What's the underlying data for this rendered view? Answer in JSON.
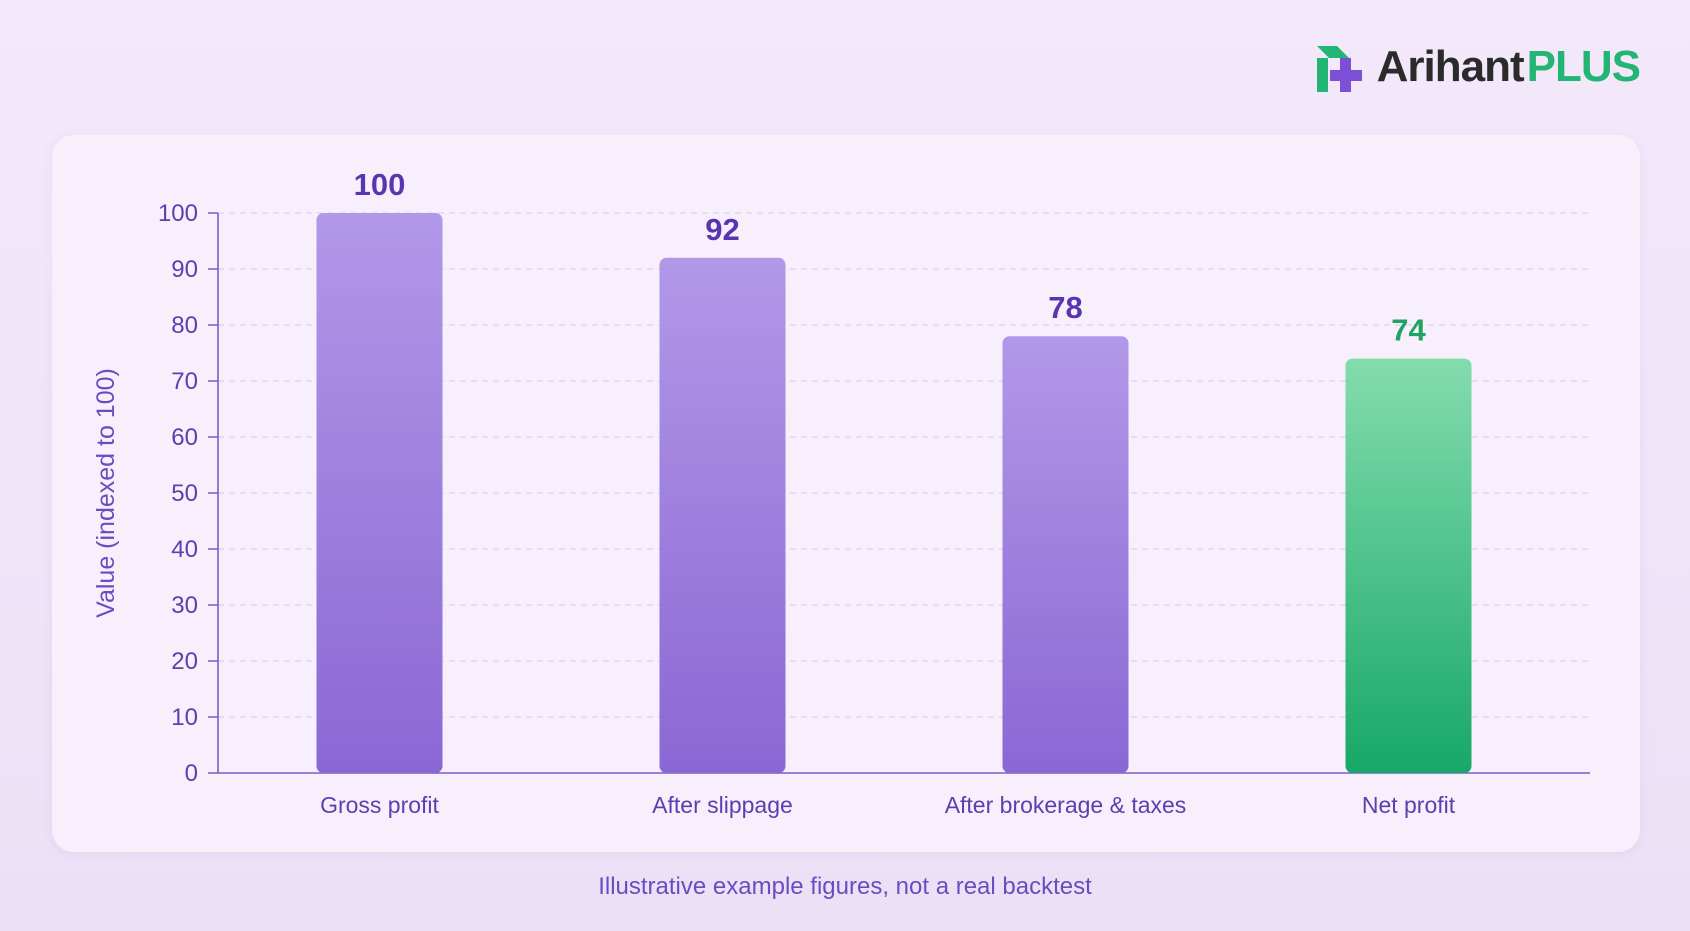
{
  "brand": {
    "name": "Arihant",
    "suffix": "PLUS",
    "icon": "arihant-logo-icon",
    "colors": {
      "name": "#2b2b2b",
      "suffix": "#22b573",
      "icon_green": "#22b573",
      "icon_purple": "#7b4fd6"
    }
  },
  "chart_data": {
    "type": "bar",
    "categories": [
      "Gross profit",
      "After slippage",
      "After brokerage & taxes",
      "Net profit"
    ],
    "values": [
      100,
      92,
      78,
      74
    ],
    "data_labels": [
      "100",
      "92",
      "78",
      "74"
    ],
    "title": "",
    "xlabel": "",
    "ylabel": "Value (indexed to 100)",
    "ylim": [
      0,
      100
    ],
    "yticks": [
      0,
      10,
      20,
      30,
      40,
      50,
      60,
      70,
      80,
      90,
      100
    ],
    "grid": "horizontal dashed",
    "legend": "none",
    "bar_colors": [
      "#9a78dc",
      "#9a78dc",
      "#9a78dc",
      "#3ec487"
    ],
    "label_colors": [
      "#5a35b0",
      "#5a35b0",
      "#5a35b0",
      "#1fa463"
    ]
  },
  "footnote": "Illustrative example figures, not a real backtest"
}
